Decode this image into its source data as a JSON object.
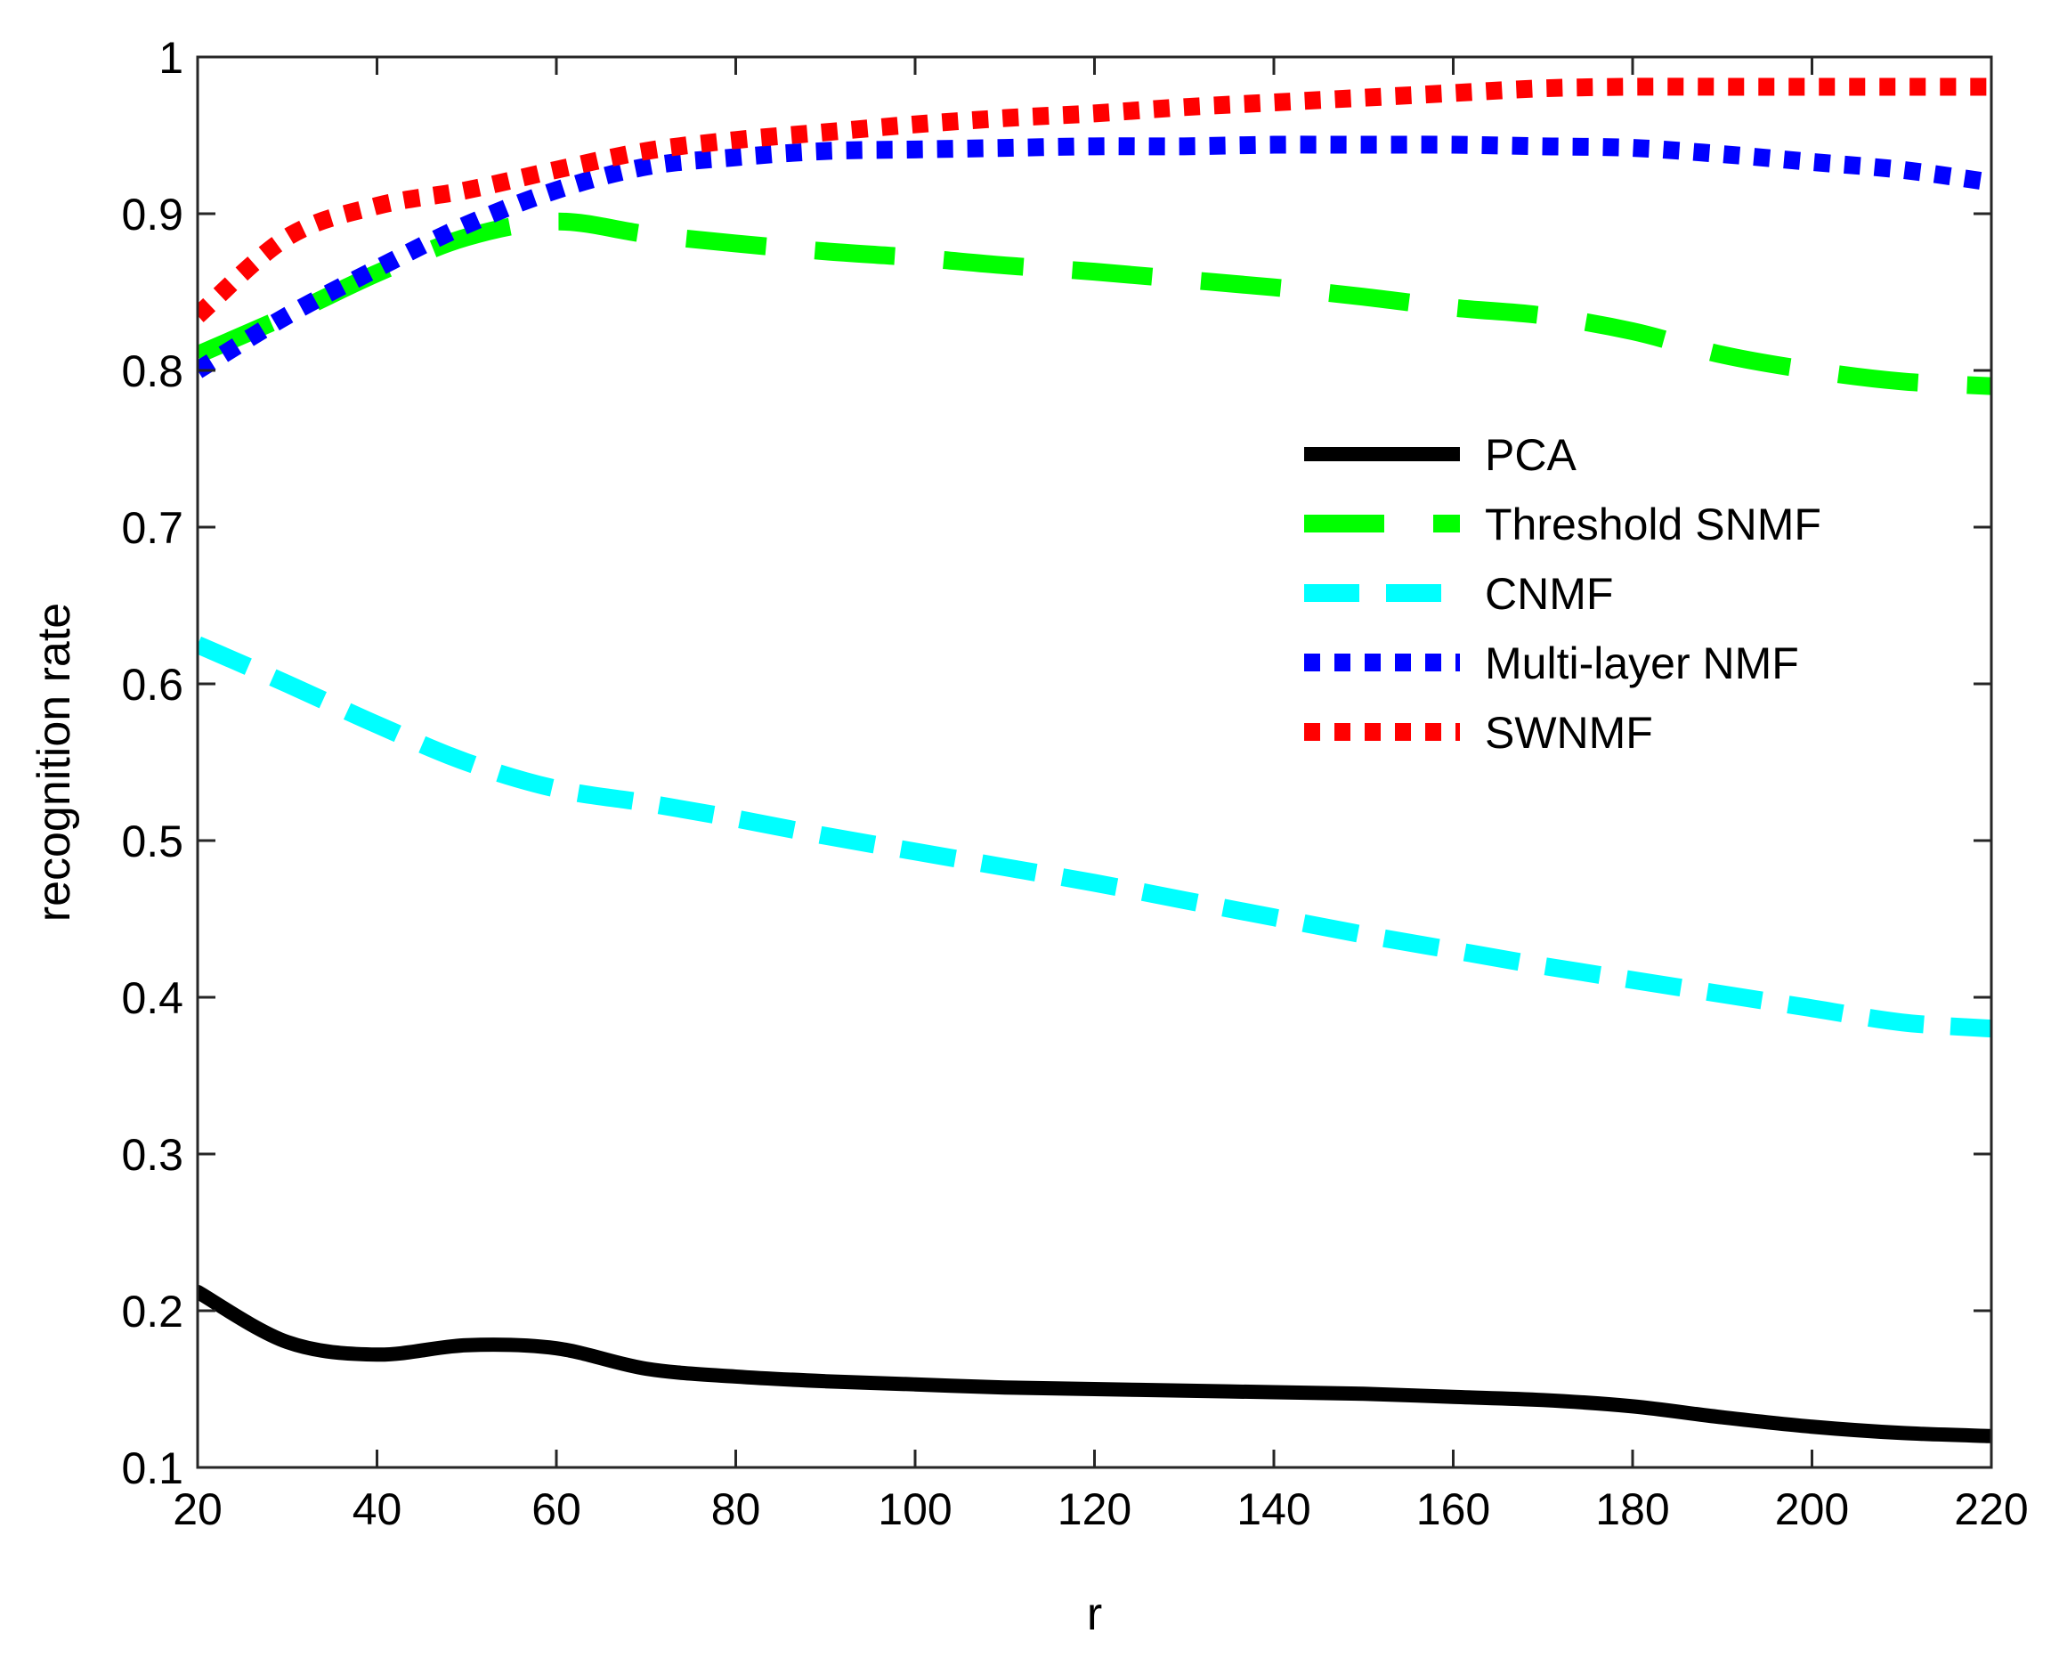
{
  "chart_data": {
    "type": "line",
    "xlabel": "r",
    "ylabel": "recognition rate",
    "xlim": [
      20,
      220
    ],
    "ylim": [
      0.1,
      1
    ],
    "x_ticks": [
      20,
      40,
      60,
      80,
      100,
      120,
      140,
      160,
      180,
      200,
      220
    ],
    "x_tick_labels": [
      "20",
      "40",
      "60",
      "80",
      "100",
      "120",
      "140",
      "160",
      "180",
      "200",
      "220"
    ],
    "y_ticks": [
      0.1,
      0.2,
      0.3,
      0.4,
      0.5,
      0.6,
      0.7,
      0.8,
      0.9,
      1
    ],
    "y_tick_labels": [
      "0.1",
      "0.2",
      "0.3",
      "0.4",
      "0.5",
      "0.6",
      "0.7",
      "0.8",
      "0.9",
      "1"
    ],
    "grid": false,
    "box": true,
    "legend_position": "right-middle",
    "x": [
      20,
      30,
      40,
      50,
      60,
      70,
      80,
      90,
      100,
      110,
      120,
      130,
      140,
      150,
      160,
      170,
      180,
      190,
      200,
      210,
      220
    ],
    "series": [
      {
        "name": "PCA",
        "color": "#000000",
        "style": "solid",
        "values": [
          0.212,
          0.18,
          0.172,
          0.178,
          0.176,
          0.163,
          0.158,
          0.155,
          0.153,
          0.151,
          0.15,
          0.149,
          0.148,
          0.147,
          0.145,
          0.143,
          0.139,
          0.132,
          0.126,
          0.122,
          0.12
        ]
      },
      {
        "name": "Threshold SNMF",
        "color": "#00ff00",
        "style": "long-dash",
        "values": [
          0.81,
          0.835,
          0.862,
          0.885,
          0.895,
          0.887,
          0.881,
          0.876,
          0.872,
          0.867,
          0.863,
          0.858,
          0.853,
          0.847,
          0.84,
          0.835,
          0.825,
          0.81,
          0.8,
          0.793,
          0.79
        ]
      },
      {
        "name": "CNMF",
        "color": "#00ffff",
        "style": "dash",
        "values": [
          0.625,
          0.6,
          0.574,
          0.55,
          0.533,
          0.524,
          0.514,
          0.503,
          0.493,
          0.483,
          0.473,
          0.462,
          0.451,
          0.44,
          0.43,
          0.42,
          0.411,
          0.402,
          0.393,
          0.384,
          0.38
        ]
      },
      {
        "name": "Multi-layer NMF",
        "color": "#0000ff",
        "style": "dotted",
        "values": [
          0.8,
          0.835,
          0.865,
          0.893,
          0.915,
          0.93,
          0.936,
          0.94,
          0.941,
          0.942,
          0.943,
          0.943,
          0.944,
          0.944,
          0.944,
          0.943,
          0.942,
          0.938,
          0.933,
          0.928,
          0.92
        ]
      },
      {
        "name": "SWNMF",
        "color": "#ff0000",
        "style": "dotted",
        "values": [
          0.835,
          0.885,
          0.905,
          0.915,
          0.928,
          0.94,
          0.947,
          0.952,
          0.957,
          0.961,
          0.964,
          0.968,
          0.971,
          0.974,
          0.977,
          0.98,
          0.981,
          0.981,
          0.981,
          0.981,
          0.981
        ]
      }
    ]
  }
}
